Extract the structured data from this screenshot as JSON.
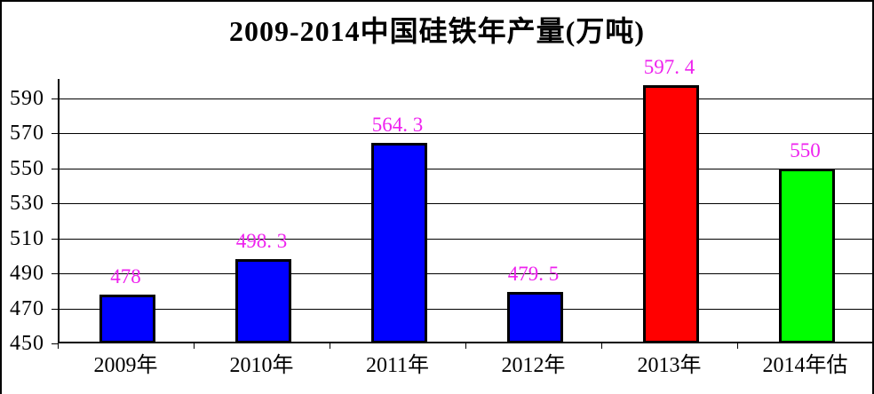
{
  "chart_data": {
    "type": "bar",
    "title": "2009-2014中国硅铁年产量(万吨)",
    "xlabel": "",
    "ylabel": "",
    "categories": [
      "2009年",
      "2010年",
      "2011年",
      "2012年",
      "2013年",
      "2014年估"
    ],
    "values": [
      478,
      498.3,
      564.3,
      479.5,
      597.4,
      550
    ],
    "value_labels": [
      "478",
      "498. 3",
      "564. 3",
      "479. 5",
      "597. 4",
      "550"
    ],
    "bar_colors": [
      "#0000ff",
      "#0000ff",
      "#0000ff",
      "#0000ff",
      "#ff0000",
      "#00ff00"
    ],
    "value_label_color": "#ee22ee",
    "axis_color": "#000000",
    "background_color": "#ffffff",
    "y_ticks": [
      450,
      470,
      490,
      510,
      530,
      550,
      570,
      590
    ],
    "ylim": [
      450,
      601
    ],
    "grid": true,
    "legend_position": "none"
  }
}
